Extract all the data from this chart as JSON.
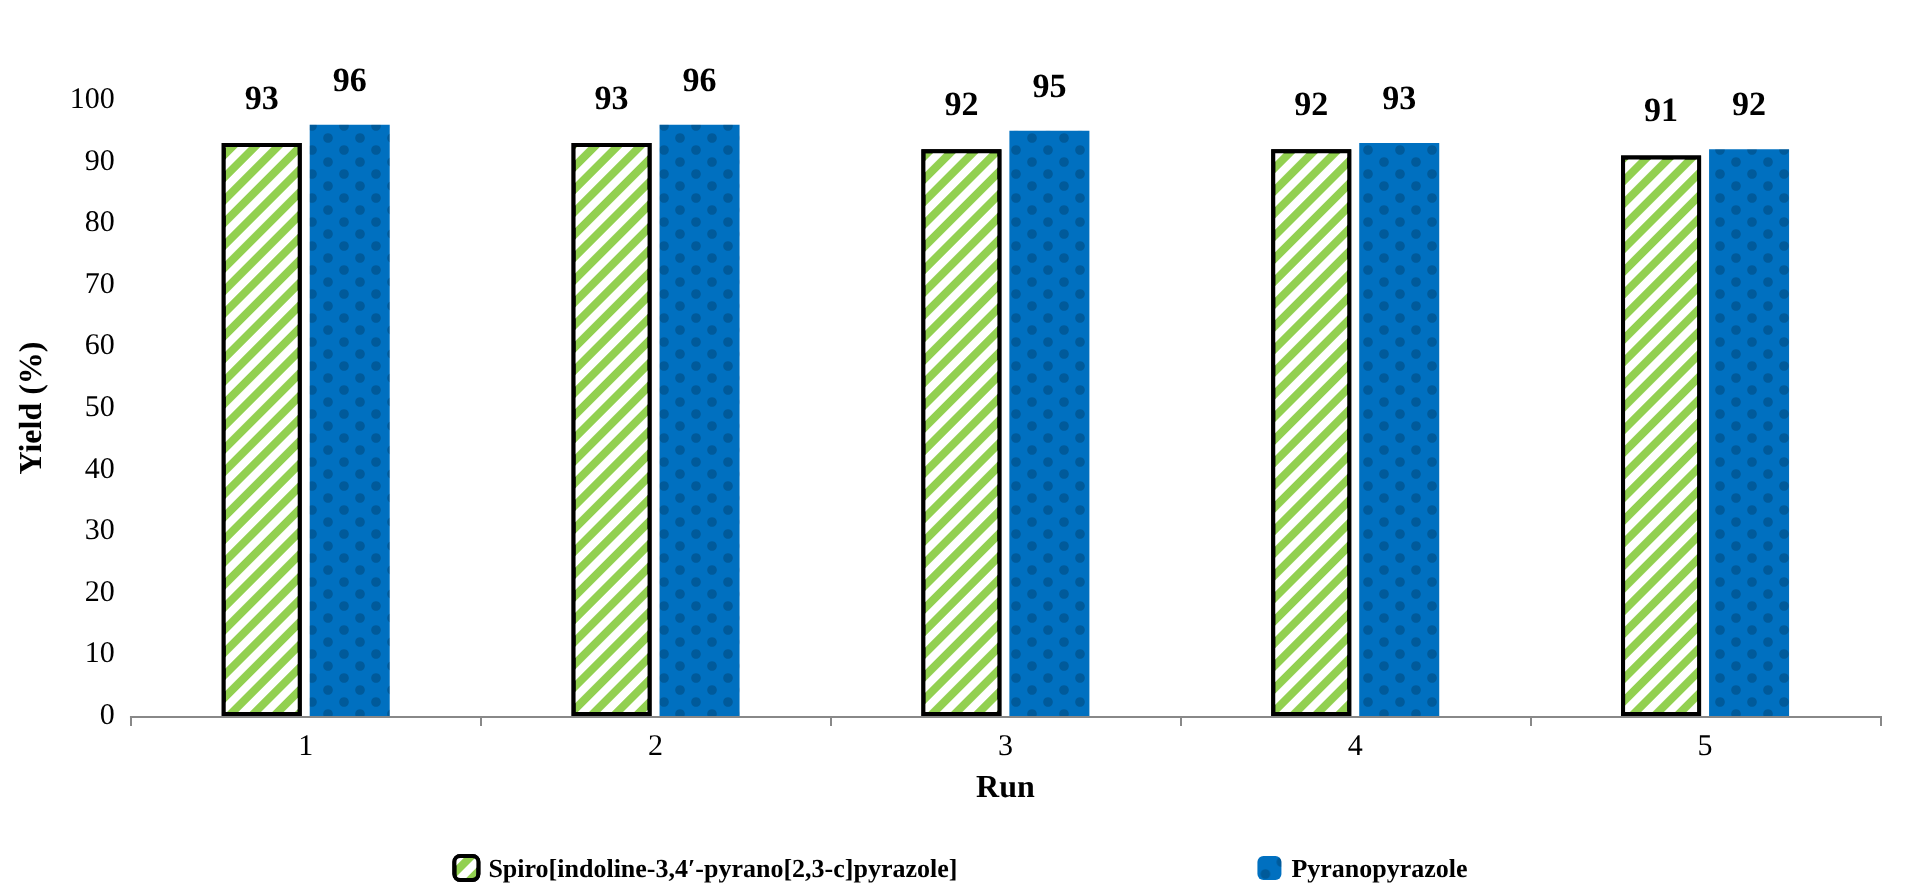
{
  "chart_data": {
    "type": "bar",
    "xlabel": "Run",
    "ylabel": "Yield (%)",
    "categories": [
      "1",
      "2",
      "3",
      "4",
      "5"
    ],
    "series": [
      {
        "name": "Spiro[indoline-3,4′-pyrano[2,3-c]pyrazole]",
        "color": "#92d050",
        "values": [
          93,
          93,
          92,
          92,
          91
        ]
      },
      {
        "name": "Pyranopyrazole",
        "color": "#0070c0",
        "values": [
          96,
          96,
          95,
          93,
          92
        ]
      }
    ],
    "ylim": [
      0,
      100
    ],
    "yticks": [
      0,
      10,
      20,
      30,
      40,
      50,
      60,
      70,
      80,
      90,
      100
    ],
    "grid": false,
    "legend": "bottom",
    "data_labels": true
  }
}
